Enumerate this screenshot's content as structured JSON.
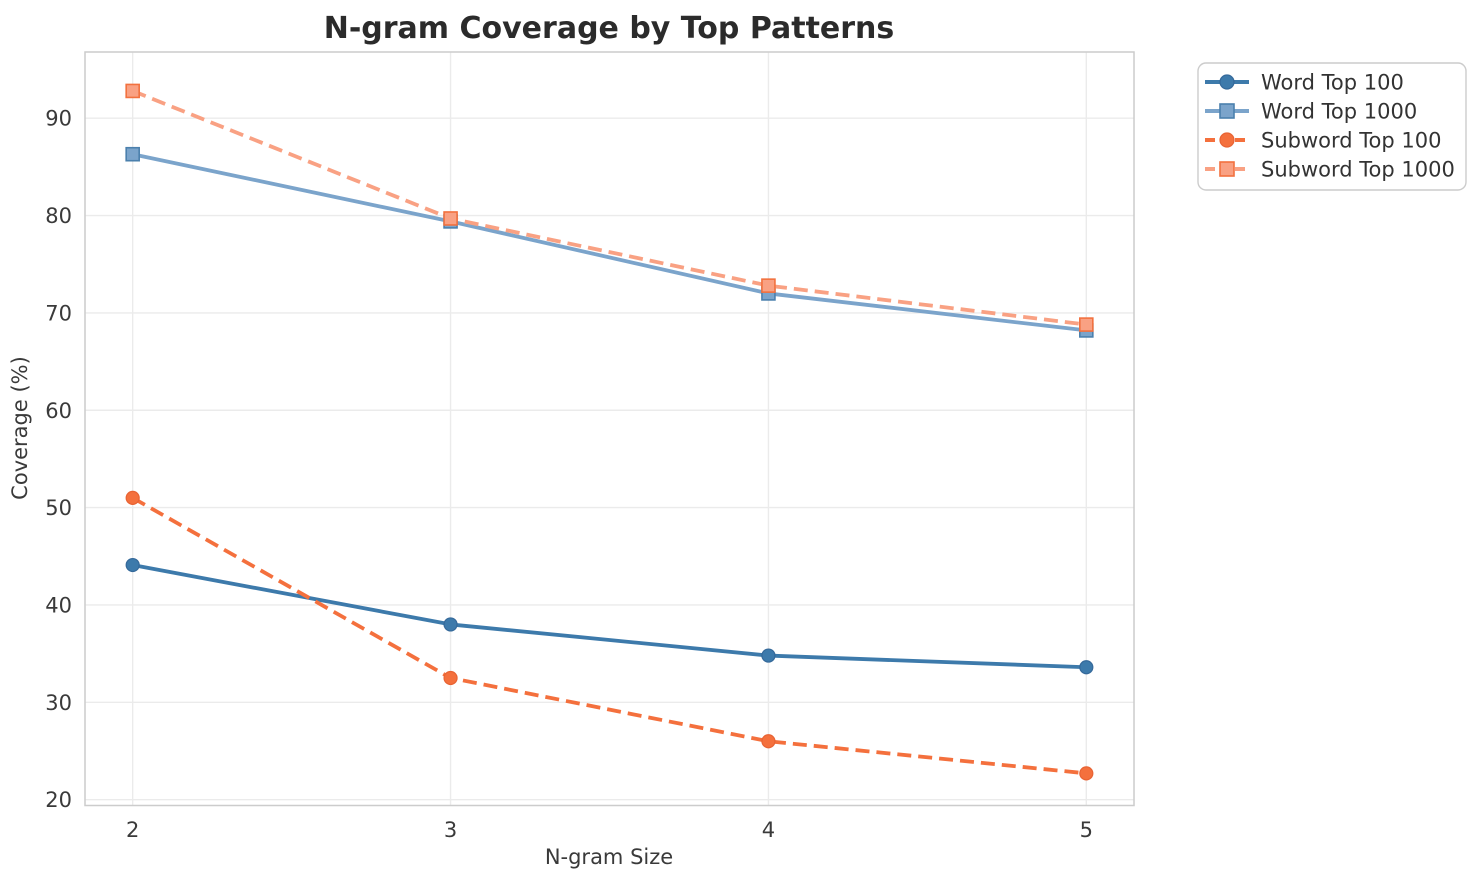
{
  "chart_data": {
    "type": "line",
    "title": "N-gram Coverage by Top Patterns",
    "xlabel": "N-gram Size",
    "ylabel": "Coverage (%)",
    "x": [
      2,
      3,
      4,
      5
    ],
    "xtick_labels": [
      "2",
      "3",
      "4",
      "5"
    ],
    "yticks": [
      20,
      30,
      40,
      50,
      60,
      70,
      80,
      90
    ],
    "xlim": [
      1.85,
      5.15
    ],
    "ylim": [
      19.4,
      96.8
    ],
    "grid": true,
    "legend_position": "outside-upper-right",
    "series": [
      {
        "name": "Word Top 100",
        "values": [
          44.1,
          38.0,
          34.8,
          33.6
        ],
        "color": "#3d7aab",
        "marker_edge_color": "#35699a",
        "line_style": "solid",
        "marker": "circle"
      },
      {
        "name": "Word Top 1000",
        "values": [
          86.3,
          79.4,
          72.0,
          68.2
        ],
        "color": "#7ba4cb",
        "marker_edge_color": "#4b80ad",
        "line_style": "solid",
        "marker": "square"
      },
      {
        "name": "Subword Top 100",
        "values": [
          51.0,
          32.5,
          26.0,
          22.7
        ],
        "color": "#f4703d",
        "marker_edge_color": "#e86333",
        "line_style": "dashed",
        "marker": "circle"
      },
      {
        "name": "Subword Top 1000",
        "values": [
          92.8,
          79.7,
          72.8,
          68.8
        ],
        "color": "#f9a183",
        "marker_edge_color": "#f2713f",
        "line_style": "dashed",
        "marker": "square"
      }
    ],
    "style": {
      "background": "#ffffff",
      "grid_color": "#ebebeb",
      "spine_color": "#cccccc",
      "tick_text_color": "#3a3a3a",
      "title_color": "#2b2b2b",
      "legend_border_color": "#cccccc",
      "legend_background": "#ffffff"
    }
  }
}
